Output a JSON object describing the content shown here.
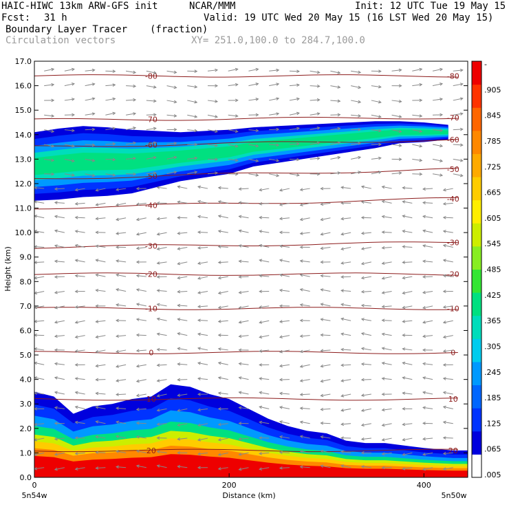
{
  "header": {
    "title": "HAIC-HIWC 13km ARW-GFS init",
    "org": "NCAR/MMM",
    "init": "Init: 12 UTC Tue 19 May 15",
    "fcst_label": "Fcst:",
    "fcst_value": "31 h",
    "valid": "Valid: 19 UTC Wed 20 May 15 (16 LST Wed 20 May 15)",
    "field": "Boundary Layer Tracer",
    "units": "(fraction)",
    "vectors": "Circulation vectors",
    "xy": "XY= 251.0,100.0 to 284.7,100.0"
  },
  "colors": {
    "contour": "#8b1a1a",
    "vector": "#888888",
    "scale": [
      "#ffffff",
      "#0000dd",
      "#0033ff",
      "#0066ff",
      "#0099ff",
      "#00ccee",
      "#00ddbb",
      "#00e080",
      "#33e633",
      "#88ee22",
      "#ccee00",
      "#ffee00",
      "#ffcc00",
      "#ffaa00",
      "#ff8800",
      "#ff6600",
      "#ff3300",
      "#ee0000"
    ]
  },
  "chart_data": {
    "type": "heatmap",
    "xlabel": "Distance (km)",
    "ylabel": "Height (km)",
    "xlim": [
      0,
      445
    ],
    "ylim": [
      0,
      17
    ],
    "x_ticks": [
      0,
      200,
      400
    ],
    "y_ticks": [
      "0.0",
      "1.0",
      "2.0",
      "3.0",
      "4.0",
      "5.0",
      "6.0",
      "7.0",
      "8.0",
      "9.0",
      "10.0",
      "11.0",
      "12.0",
      "13.0",
      "14.0",
      "15.0",
      "16.0",
      "17.0"
    ],
    "x_end_labels": {
      "left": "5n54w",
      "right": "5n50w"
    },
    "colorbar_labels": [
      "-",
      ".905",
      ".845",
      ".785",
      ".725",
      ".665",
      ".605",
      ".545",
      ".485",
      ".425",
      ".365",
      ".305",
      ".245",
      ".185",
      ".125",
      ".065",
      ".005"
    ],
    "isotherms": [
      {
        "label": "-80",
        "height": 16.4,
        "slope": 0.0
      },
      {
        "label": "-70",
        "height": 14.6,
        "slope": 0.1
      },
      {
        "label": "-60",
        "height": 13.5,
        "slope": 0.3
      },
      {
        "label": "-50",
        "height": 12.2,
        "slope": 0.4
      },
      {
        "label": "-40",
        "height": 11.0,
        "slope": 0.4
      },
      {
        "label": "-30",
        "height": 9.4,
        "slope": 0.2
      },
      {
        "label": "-20",
        "height": 8.3,
        "slope": 0.0
      },
      {
        "label": "-10",
        "height": 6.9,
        "slope": 0.0
      },
      {
        "label": "0",
        "height": 5.1,
        "slope": 0.0
      },
      {
        "label": "10",
        "height": 3.2,
        "slope": 0.0
      },
      {
        "label": "20",
        "height": 1.1,
        "slope": 0.0
      }
    ],
    "cloud_layer": [
      [
        0,
        12.7,
        2.8
      ],
      [
        25,
        12.8,
        2.9
      ],
      [
        50,
        12.9,
        2.9
      ],
      [
        75,
        12.9,
        2.8
      ],
      [
        100,
        12.9,
        2.6
      ],
      [
        125,
        13.0,
        2.3
      ],
      [
        150,
        13.1,
        2.0
      ],
      [
        175,
        13.2,
        1.9
      ],
      [
        200,
        13.3,
        1.8
      ],
      [
        225,
        13.5,
        1.6
      ],
      [
        250,
        13.6,
        1.5
      ],
      [
        275,
        13.7,
        1.4
      ],
      [
        300,
        13.8,
        1.3
      ],
      [
        325,
        13.9,
        1.2
      ],
      [
        350,
        14.0,
        1.1
      ],
      [
        375,
        14.1,
        0.9
      ],
      [
        400,
        14.1,
        0.8
      ],
      [
        425,
        14.1,
        0.6
      ]
    ],
    "boundary_layer": [
      [
        0,
        3.5
      ],
      [
        20,
        3.3
      ],
      [
        40,
        2.6
      ],
      [
        60,
        2.9
      ],
      [
        80,
        3.0
      ],
      [
        100,
        3.2
      ],
      [
        120,
        3.3
      ],
      [
        140,
        3.8
      ],
      [
        160,
        3.7
      ],
      [
        180,
        3.4
      ],
      [
        200,
        3.2
      ],
      [
        220,
        2.8
      ],
      [
        240,
        2.4
      ],
      [
        260,
        2.1
      ],
      [
        280,
        1.9
      ],
      [
        300,
        1.8
      ],
      [
        320,
        1.5
      ],
      [
        340,
        1.4
      ],
      [
        360,
        1.4
      ],
      [
        380,
        1.3
      ],
      [
        400,
        1.2
      ],
      [
        430,
        1.1
      ]
    ]
  }
}
